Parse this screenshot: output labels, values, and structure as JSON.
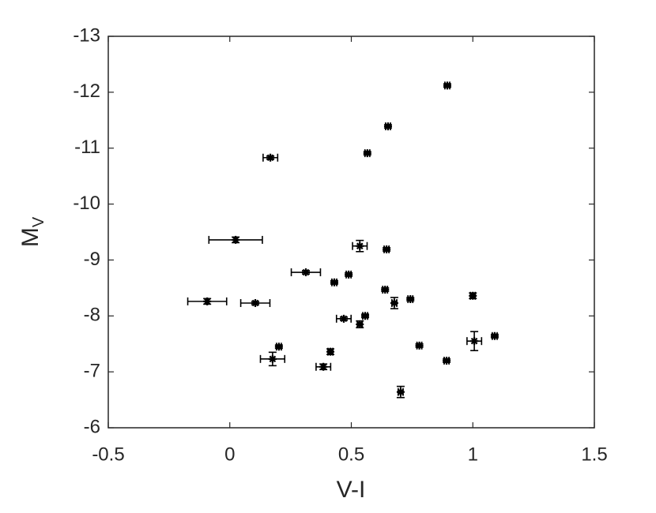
{
  "chart_data": {
    "type": "scatter",
    "x_label": "V-I",
    "y_label": {
      "text": "M",
      "subscript": "V"
    },
    "x": [
      0.895,
      0.651,
      0.566,
      0.167,
      0.024,
      0.535,
      0.645,
      0.313,
      0.489,
      0.43,
      0.639,
      -0.093,
      0.105,
      0.743,
      0.677,
      1.0,
      0.557,
      0.469,
      0.535,
      1.09,
      1.006,
      0.78,
      0.202,
      0.414,
      0.176,
      0.892,
      0.385,
      0.703
    ],
    "xerr": [
      0.01,
      0.01,
      0.01,
      0.03,
      0.11,
      0.03,
      0.01,
      0.06,
      0.01,
      0.01,
      0.01,
      0.08,
      0.06,
      0.01,
      0.01,
      0.01,
      0.01,
      0.03,
      0.01,
      0.01,
      0.03,
      0.01,
      0.01,
      0.01,
      0.05,
      0.01,
      0.03,
      0.01
    ],
    "values": [
      -12.12,
      -11.39,
      -10.91,
      -10.83,
      -9.36,
      -9.25,
      -9.19,
      -8.78,
      -8.74,
      -8.6,
      -8.47,
      -8.26,
      -8.23,
      -8.3,
      -8.23,
      -8.36,
      -8.0,
      -7.95,
      -7.85,
      -7.64,
      -7.55,
      -7.47,
      -7.45,
      -7.36,
      -7.23,
      -7.2,
      -7.09,
      -6.64
    ],
    "yerr": [
      0.03,
      0.03,
      0.03,
      0.03,
      0.05,
      0.1,
      0.03,
      0.03,
      0.03,
      0.03,
      0.03,
      0.05,
      0.03,
      0.03,
      0.1,
      0.05,
      0.03,
      0.03,
      0.06,
      0.03,
      0.17,
      0.03,
      0.03,
      0.05,
      0.12,
      0.03,
      0.05,
      0.1
    ],
    "color": "#000000",
    "xlim": [
      -0.5,
      1.5
    ],
    "xticks": [
      -0.5,
      0,
      0.5,
      1,
      1.5
    ],
    "ylim": [
      -13,
      -6
    ],
    "yticks": [
      -13,
      -12,
      -11,
      -10,
      -9,
      -8,
      -7,
      -6
    ],
    "y_reversed": true
  }
}
